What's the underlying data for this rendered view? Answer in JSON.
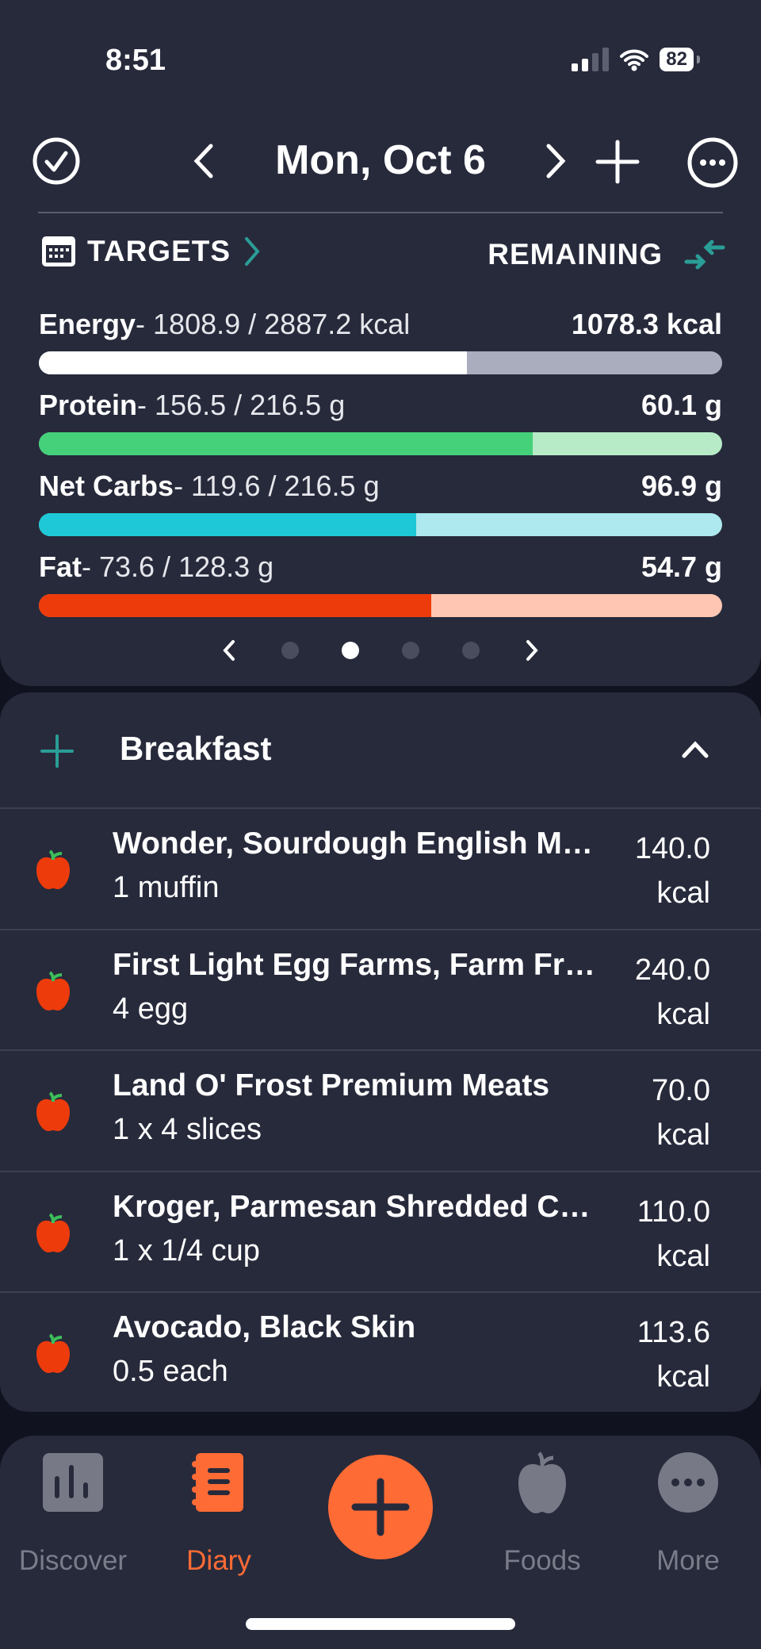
{
  "status": {
    "time": "8:51",
    "battery": "82"
  },
  "header": {
    "date": "Mon, Oct 6"
  },
  "targets": {
    "label": "TARGETS",
    "mode": "REMAINING"
  },
  "macros": [
    {
      "name": "Energy",
      "detail": "- 1808.9 / 2887.2 kcal",
      "remaining": "1078.3 kcal",
      "progress": 62.65,
      "color": "#ffffff",
      "track": "#a9adbd"
    },
    {
      "name": "Protein",
      "detail": "- 156.5 / 216.5 g",
      "remaining": "60.1 g",
      "progress": 72.3,
      "color": "#45d07a",
      "track": "#b7ebc7"
    },
    {
      "name": "Net Carbs",
      "detail": "- 119.6 / 216.5 g",
      "remaining": "96.9 g",
      "progress": 55.2,
      "color": "#1ec8d6",
      "track": "#ade9ee"
    },
    {
      "name": "Fat",
      "detail": "- 73.6 / 128.3 g",
      "remaining": "54.7 g",
      "progress": 57.4,
      "color": "#ee3b0b",
      "track": "#ffc6b3"
    }
  ],
  "pager": {
    "pages": 4,
    "active": 1
  },
  "meal": {
    "title": "Breakfast",
    "items": [
      {
        "name": "Wonder, Sourdough English Muffin",
        "serving": "1 muffin",
        "kcal": "140.0",
        "unit": "kcal"
      },
      {
        "name": "First Light Egg Farms, Farm Fresh Eggs",
        "serving": "4 egg",
        "kcal": "240.0",
        "unit": "kcal"
      },
      {
        "name": "Land O' Frost Premium Meats",
        "serving": "1 x 4 slices",
        "kcal": "70.0",
        "unit": "kcal"
      },
      {
        "name": "Kroger, Parmesan Shredded Cheese",
        "serving": "1 x 1/4 cup",
        "kcal": "110.0",
        "unit": "kcal"
      },
      {
        "name": "Avocado, Black Skin",
        "serving": "0.5 each",
        "kcal": "113.6",
        "unit": "kcal"
      }
    ]
  },
  "tabs": [
    {
      "label": "Discover",
      "icon": "chart-icon"
    },
    {
      "label": "Diary",
      "icon": "notebook-icon",
      "active": true
    },
    {
      "label": "",
      "icon": "plus-icon"
    },
    {
      "label": "Foods",
      "icon": "apple-icon"
    },
    {
      "label": "More",
      "icon": "more-icon"
    }
  ],
  "colors": {
    "accent": "#ff6b35",
    "teal": "#2a9d96",
    "background": "#272a3b"
  }
}
